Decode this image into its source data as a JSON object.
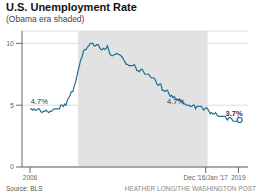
{
  "chart_data": {
    "type": "line",
    "title": "U.S. Unemployment Rate",
    "subtitle": "(Obama era shaded)",
    "source": "Source: BLS",
    "credit": "HEATHER LONG/THE WASHINGTON POST",
    "color": "#1f6e96",
    "marker": "end",
    "grid": true,
    "xlim": [
      2005.5,
      2019.6
    ],
    "xticks": [
      2006,
      {
        "value": 2016.96,
        "label": "Dec '16/Jan '17"
      },
      2019
    ],
    "ylim": [
      0,
      11
    ],
    "yticks": [
      0,
      5,
      10
    ],
    "spans": [
      {
        "start": 2009.0,
        "end": 2017.08,
        "color": "#e2e2e2"
      }
    ],
    "annotations": [
      {
        "x": 2006.05,
        "y": 5.05,
        "text": "4.7%"
      },
      {
        "x": 2014.55,
        "y": 5.05,
        "text": "4.7%"
      },
      {
        "x": 2018.2,
        "y": 4.05,
        "text": "3.7%"
      }
    ],
    "x": [
      2006.0,
      2006.08,
      2006.17,
      2006.25,
      2006.33,
      2006.42,
      2006.5,
      2006.58,
      2006.67,
      2006.75,
      2006.83,
      2006.92,
      2007.0,
      2007.08,
      2007.17,
      2007.25,
      2007.33,
      2007.42,
      2007.5,
      2007.58,
      2007.67,
      2007.75,
      2007.83,
      2007.92,
      2008.0,
      2008.08,
      2008.17,
      2008.25,
      2008.33,
      2008.42,
      2008.5,
      2008.58,
      2008.67,
      2008.75,
      2008.83,
      2008.92,
      2009.0,
      2009.08,
      2009.17,
      2009.25,
      2009.33,
      2009.42,
      2009.5,
      2009.58,
      2009.67,
      2009.75,
      2009.83,
      2009.92,
      2010.0,
      2010.08,
      2010.17,
      2010.25,
      2010.33,
      2010.42,
      2010.5,
      2010.58,
      2010.67,
      2010.75,
      2010.83,
      2010.92,
      2011.0,
      2011.08,
      2011.17,
      2011.25,
      2011.33,
      2011.42,
      2011.5,
      2011.58,
      2011.67,
      2011.75,
      2011.83,
      2011.92,
      2012.0,
      2012.08,
      2012.17,
      2012.25,
      2012.33,
      2012.42,
      2012.5,
      2012.58,
      2012.67,
      2012.75,
      2012.83,
      2012.92,
      2013.0,
      2013.08,
      2013.17,
      2013.25,
      2013.33,
      2013.42,
      2013.5,
      2013.58,
      2013.67,
      2013.75,
      2013.83,
      2013.92,
      2014.0,
      2014.08,
      2014.17,
      2014.25,
      2014.33,
      2014.42,
      2014.5,
      2014.58,
      2014.67,
      2014.75,
      2014.83,
      2014.92,
      2015.0,
      2015.08,
      2015.17,
      2015.25,
      2015.33,
      2015.42,
      2015.5,
      2015.58,
      2015.67,
      2015.75,
      2015.83,
      2015.92,
      2016.0,
      2016.08,
      2016.17,
      2016.25,
      2016.33,
      2016.42,
      2016.5,
      2016.58,
      2016.67,
      2016.75,
      2016.83,
      2016.92,
      2017.0,
      2017.08,
      2017.17,
      2017.25,
      2017.33,
      2017.42,
      2017.5,
      2017.58,
      2017.67,
      2017.75,
      2017.83,
      2017.92,
      2018.0,
      2018.08,
      2018.17,
      2018.25,
      2018.33,
      2018.42,
      2018.5,
      2018.58,
      2018.67,
      2018.75,
      2018.83,
      2018.92,
      2019.0,
      2019.08
    ],
    "values": [
      4.7,
      4.7,
      4.6,
      4.7,
      4.6,
      4.6,
      4.7,
      4.7,
      4.5,
      4.4,
      4.5,
      4.5,
      4.6,
      4.5,
      4.4,
      4.5,
      4.5,
      4.6,
      4.7,
      4.7,
      4.7,
      4.7,
      4.7,
      5.0,
      5.0,
      4.9,
      5.1,
      5.0,
      5.4,
      5.6,
      5.8,
      6.1,
      6.1,
      6.5,
      6.8,
      7.3,
      7.8,
      8.2,
      8.7,
      8.9,
      9.4,
      9.5,
      9.5,
      9.7,
      9.8,
      10.0,
      10.0,
      10.0,
      9.8,
      9.8,
      9.9,
      9.9,
      9.7,
      9.5,
      9.5,
      9.6,
      9.5,
      9.6,
      9.8,
      9.4,
      9.1,
      9.0,
      9.0,
      9.1,
      9.1,
      9.2,
      9.1,
      9.1,
      9.0,
      8.9,
      8.7,
      8.5,
      8.3,
      8.3,
      8.2,
      8.2,
      8.2,
      8.2,
      8.3,
      8.1,
      7.8,
      7.8,
      7.7,
      7.9,
      7.9,
      7.7,
      7.5,
      7.5,
      7.5,
      7.5,
      7.3,
      7.2,
      7.2,
      7.2,
      7.0,
      6.7,
      6.6,
      6.7,
      6.7,
      6.2,
      6.2,
      6.1,
      6.2,
      6.2,
      5.9,
      5.7,
      5.8,
      5.6,
      5.7,
      5.5,
      5.5,
      5.4,
      5.5,
      5.3,
      5.3,
      5.1,
      5.1,
      5.0,
      5.0,
      5.0,
      4.9,
      4.9,
      5.0,
      5.0,
      4.7,
      4.9,
      4.9,
      4.9,
      4.9,
      4.8,
      4.6,
      4.7,
      4.8,
      4.7,
      4.5,
      4.3,
      4.4,
      4.3,
      4.3,
      4.4,
      4.2,
      4.1,
      4.1,
      4.1,
      4.1,
      4.1,
      4.1,
      3.9,
      3.8,
      4.0,
      4.0,
      3.9,
      3.7,
      3.7,
      3.7,
      3.7,
      4.0,
      3.8
    ]
  }
}
